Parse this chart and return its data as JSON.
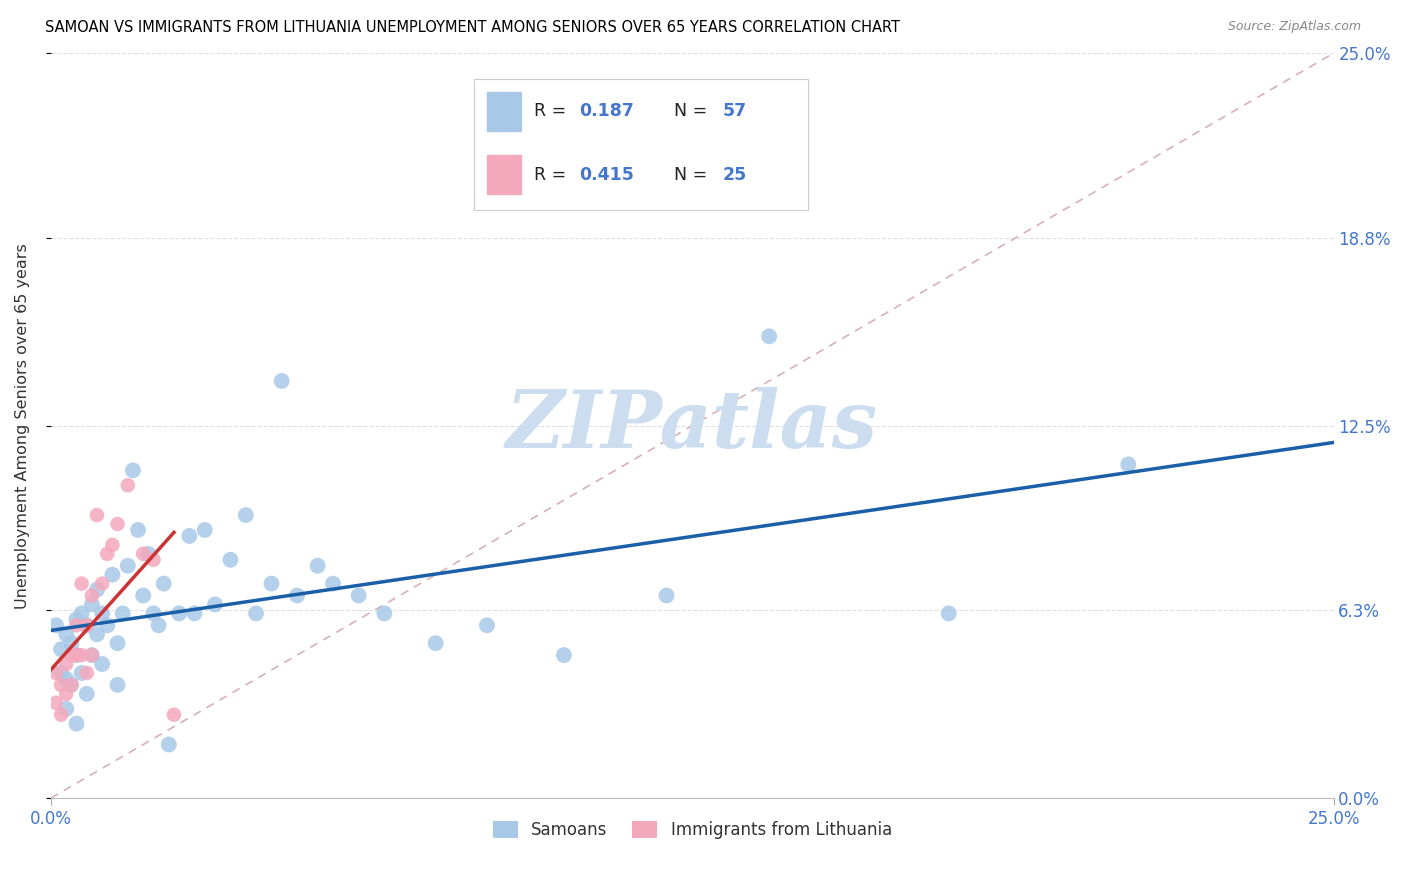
{
  "title": "SAMOAN VS IMMIGRANTS FROM LITHUANIA UNEMPLOYMENT AMONG SENIORS OVER 65 YEARS CORRELATION CHART",
  "source": "Source: ZipAtlas.com",
  "ylabel": "Unemployment Among Seniors over 65 years",
  "xlim": [
    0.0,
    0.25
  ],
  "ylim": [
    0.0,
    0.25
  ],
  "ytick_vals": [
    0.0,
    0.063,
    0.125,
    0.188,
    0.25
  ],
  "ytick_labels": [
    "0.0%",
    "6.3%",
    "12.5%",
    "18.8%",
    "25.0%"
  ],
  "xtick_vals": [
    0.0,
    0.25
  ],
  "xtick_labels": [
    "0.0%",
    "25.0%"
  ],
  "watermark": "ZIPatlas",
  "samoan_color": "#a8c8e8",
  "lithuania_color": "#f4a8bc",
  "samoan_line_color": "#1a5fa8",
  "lithuania_line_color": "#cc3333",
  "diagonal_color": "#d8b0b8",
  "label_color": "#4477cc",
  "grid_color": "#e0e0e0",
  "samoan_r": 0.187,
  "samoan_n": 57,
  "lithuania_r": 0.415,
  "lithuania_n": 25,
  "samoans_x": [
    0.001,
    0.002,
    0.002,
    0.003,
    0.003,
    0.003,
    0.004,
    0.004,
    0.005,
    0.005,
    0.005,
    0.006,
    0.006,
    0.007,
    0.007,
    0.008,
    0.008,
    0.009,
    0.009,
    0.01,
    0.01,
    0.011,
    0.012,
    0.013,
    0.013,
    0.014,
    0.015,
    0.016,
    0.017,
    0.018,
    0.019,
    0.02,
    0.021,
    0.022,
    0.023,
    0.025,
    0.027,
    0.028,
    0.03,
    0.032,
    0.035,
    0.038,
    0.04,
    0.043,
    0.045,
    0.048,
    0.052,
    0.055,
    0.06,
    0.065,
    0.075,
    0.085,
    0.1,
    0.12,
    0.14,
    0.175,
    0.21
  ],
  "samoans_y": [
    0.058,
    0.05,
    0.042,
    0.055,
    0.04,
    0.03,
    0.052,
    0.038,
    0.06,
    0.048,
    0.025,
    0.062,
    0.042,
    0.058,
    0.035,
    0.065,
    0.048,
    0.055,
    0.07,
    0.062,
    0.045,
    0.058,
    0.075,
    0.052,
    0.038,
    0.062,
    0.078,
    0.11,
    0.09,
    0.068,
    0.082,
    0.062,
    0.058,
    0.072,
    0.018,
    0.062,
    0.088,
    0.062,
    0.09,
    0.065,
    0.08,
    0.095,
    0.062,
    0.072,
    0.14,
    0.068,
    0.078,
    0.072,
    0.068,
    0.062,
    0.052,
    0.058,
    0.048,
    0.068,
    0.155,
    0.062,
    0.112
  ],
  "lithuania_x": [
    0.001,
    0.001,
    0.002,
    0.002,
    0.003,
    0.003,
    0.004,
    0.004,
    0.005,
    0.005,
    0.006,
    0.006,
    0.007,
    0.007,
    0.008,
    0.008,
    0.009,
    0.01,
    0.011,
    0.012,
    0.013,
    0.015,
    0.018,
    0.02,
    0.024
  ],
  "lithuania_y": [
    0.042,
    0.032,
    0.038,
    0.028,
    0.045,
    0.035,
    0.048,
    0.038,
    0.058,
    0.048,
    0.072,
    0.048,
    0.058,
    0.042,
    0.068,
    0.048,
    0.095,
    0.072,
    0.082,
    0.085,
    0.092,
    0.105,
    0.082,
    0.08,
    0.028
  ]
}
